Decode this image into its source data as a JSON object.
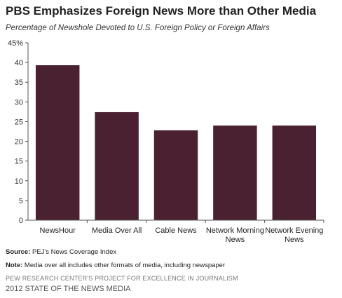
{
  "chart_data": {
    "type": "bar",
    "title": "PBS Emphasizes Foreign News More than Other Media",
    "subtitle": "Percentage of Newshole Devoted to U.S. Foreign Policy or Foreign Affairs",
    "categories": [
      [
        "NewsHour"
      ],
      [
        "Media Over All"
      ],
      [
        "Cable News"
      ],
      [
        "Network Morning",
        "News"
      ],
      [
        "Network Evening",
        "News"
      ]
    ],
    "values": [
      39.3,
      27.4,
      22.8,
      24.0,
      24.0
    ],
    "ylim": [
      0,
      45
    ],
    "yticks": [
      "0",
      "5",
      "10",
      "15",
      "20",
      "25",
      "30",
      "35",
      "40",
      "45%"
    ],
    "bar_color": "#4a2130",
    "grid": false
  },
  "source": {
    "label": "Source:",
    "text": " PEJ's News Coverage Index"
  },
  "note": {
    "label": "Note:",
    "text": " Media over all includes other formats of media, including newspaper"
  },
  "footer": {
    "line1": "PEW RESEARCH CENTER'S PROJECT FOR EXCELLENCE IN JOURNALISM",
    "line2": "2012 STATE OF THE NEWS MEDIA"
  }
}
